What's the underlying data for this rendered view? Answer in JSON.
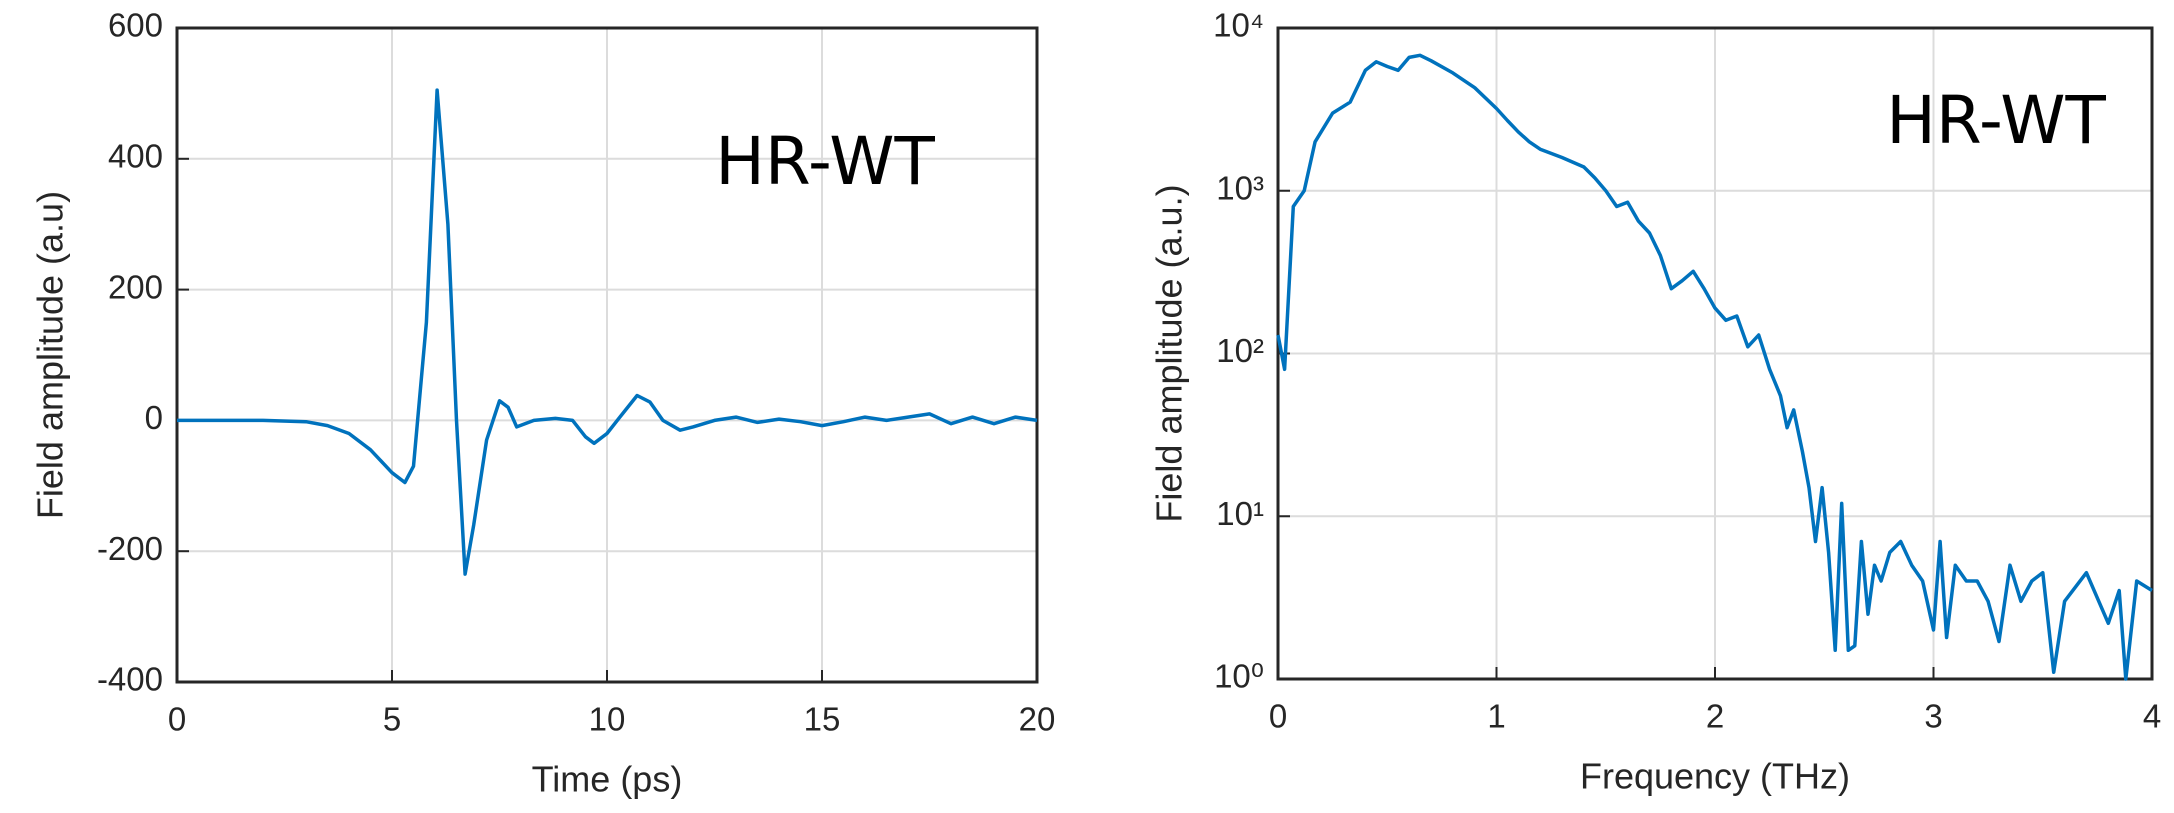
{
  "chart_data": [
    {
      "type": "line",
      "xlabel": "Time (ps)",
      "ylabel": "Field amplitude (a.u)",
      "annotation": "HR-WT",
      "xlim": [
        0,
        20
      ],
      "ylim": [
        -400,
        600
      ],
      "xticks": [
        0,
        5,
        10,
        15,
        20
      ],
      "yticks": [
        -400,
        -200,
        0,
        200,
        400,
        600
      ],
      "grid": true,
      "color": "#0072bd",
      "x": [
        0,
        1,
        2,
        3,
        3.5,
        4,
        4.5,
        5,
        5.3,
        5.5,
        5.8,
        6.05,
        6.3,
        6.5,
        6.7,
        6.9,
        7.2,
        7.5,
        7.7,
        7.9,
        8.3,
        8.8,
        9.2,
        9.5,
        9.7,
        10,
        10.3,
        10.7,
        11,
        11.3,
        11.7,
        12,
        12.5,
        13,
        13.5,
        14,
        14.5,
        15,
        15.5,
        16,
        16.5,
        17,
        17.5,
        18,
        18.5,
        19,
        19.5,
        20
      ],
      "values": [
        0,
        0,
        0,
        -2,
        -8,
        -20,
        -45,
        -80,
        -95,
        -70,
        150,
        505,
        300,
        0,
        -235,
        -160,
        -30,
        30,
        20,
        -10,
        0,
        3,
        0,
        -25,
        -35,
        -20,
        5,
        38,
        28,
        0,
        -15,
        -10,
        0,
        5,
        -3,
        2,
        -2,
        -8,
        -2,
        5,
        0,
        5,
        10,
        -5,
        5,
        -5,
        5,
        0
      ]
    },
    {
      "type": "line",
      "xlabel": "Frequency (THz)",
      "ylabel": "Field amplitude (a.u.)",
      "annotation": "HR-WT",
      "yscale": "log",
      "xlim": [
        0,
        4
      ],
      "ylim": [
        1,
        10000
      ],
      "xticks": [
        0,
        1,
        2,
        3,
        4
      ],
      "yticks": [
        {
          "value": 1,
          "label": "10⁰"
        },
        {
          "value": 10,
          "label": "10¹"
        },
        {
          "value": 100,
          "label": "10²"
        },
        {
          "value": 1000,
          "label": "10³"
        },
        {
          "value": 10000,
          "label": "10⁴"
        }
      ],
      "grid": true,
      "color": "#0072bd",
      "x": [
        0,
        0.03,
        0.07,
        0.12,
        0.17,
        0.25,
        0.33,
        0.4,
        0.45,
        0.5,
        0.55,
        0.6,
        0.65,
        0.7,
        0.8,
        0.9,
        1.0,
        1.05,
        1.1,
        1.15,
        1.2,
        1.3,
        1.4,
        1.45,
        1.5,
        1.55,
        1.6,
        1.65,
        1.7,
        1.75,
        1.8,
        1.85,
        1.9,
        1.95,
        2.0,
        2.05,
        2.1,
        2.15,
        2.2,
        2.25,
        2.3,
        2.33,
        2.36,
        2.4,
        2.43,
        2.46,
        2.49,
        2.52,
        2.55,
        2.58,
        2.61,
        2.64,
        2.67,
        2.7,
        2.73,
        2.76,
        2.8,
        2.85,
        2.9,
        2.95,
        3.0,
        3.03,
        3.06,
        3.1,
        3.15,
        3.2,
        3.25,
        3.3,
        3.35,
        3.4,
        3.45,
        3.5,
        3.55,
        3.6,
        3.7,
        3.8,
        3.85,
        3.88,
        3.93,
        4.0
      ],
      "values": [
        130,
        80,
        800,
        1000,
        2000,
        3000,
        3500,
        5500,
        6200,
        5800,
        5500,
        6600,
        6800,
        6300,
        5300,
        4300,
        3200,
        2700,
        2300,
        2000,
        1800,
        1600,
        1400,
        1200,
        1000,
        800,
        850,
        650,
        550,
        400,
        250,
        280,
        320,
        250,
        190,
        160,
        170,
        110,
        130,
        80,
        55,
        35,
        45,
        25,
        15,
        7,
        15,
        6,
        1.5,
        12,
        1.5,
        1.6,
        7,
        2.5,
        5,
        4,
        6,
        7,
        5,
        4,
        2,
        7,
        1.8,
        5,
        4,
        4,
        3,
        1.7,
        5,
        3,
        4,
        4.5,
        1.1,
        3,
        4.5,
        2.2,
        3.5,
        1.0,
        4,
        3.5
      ]
    }
  ]
}
